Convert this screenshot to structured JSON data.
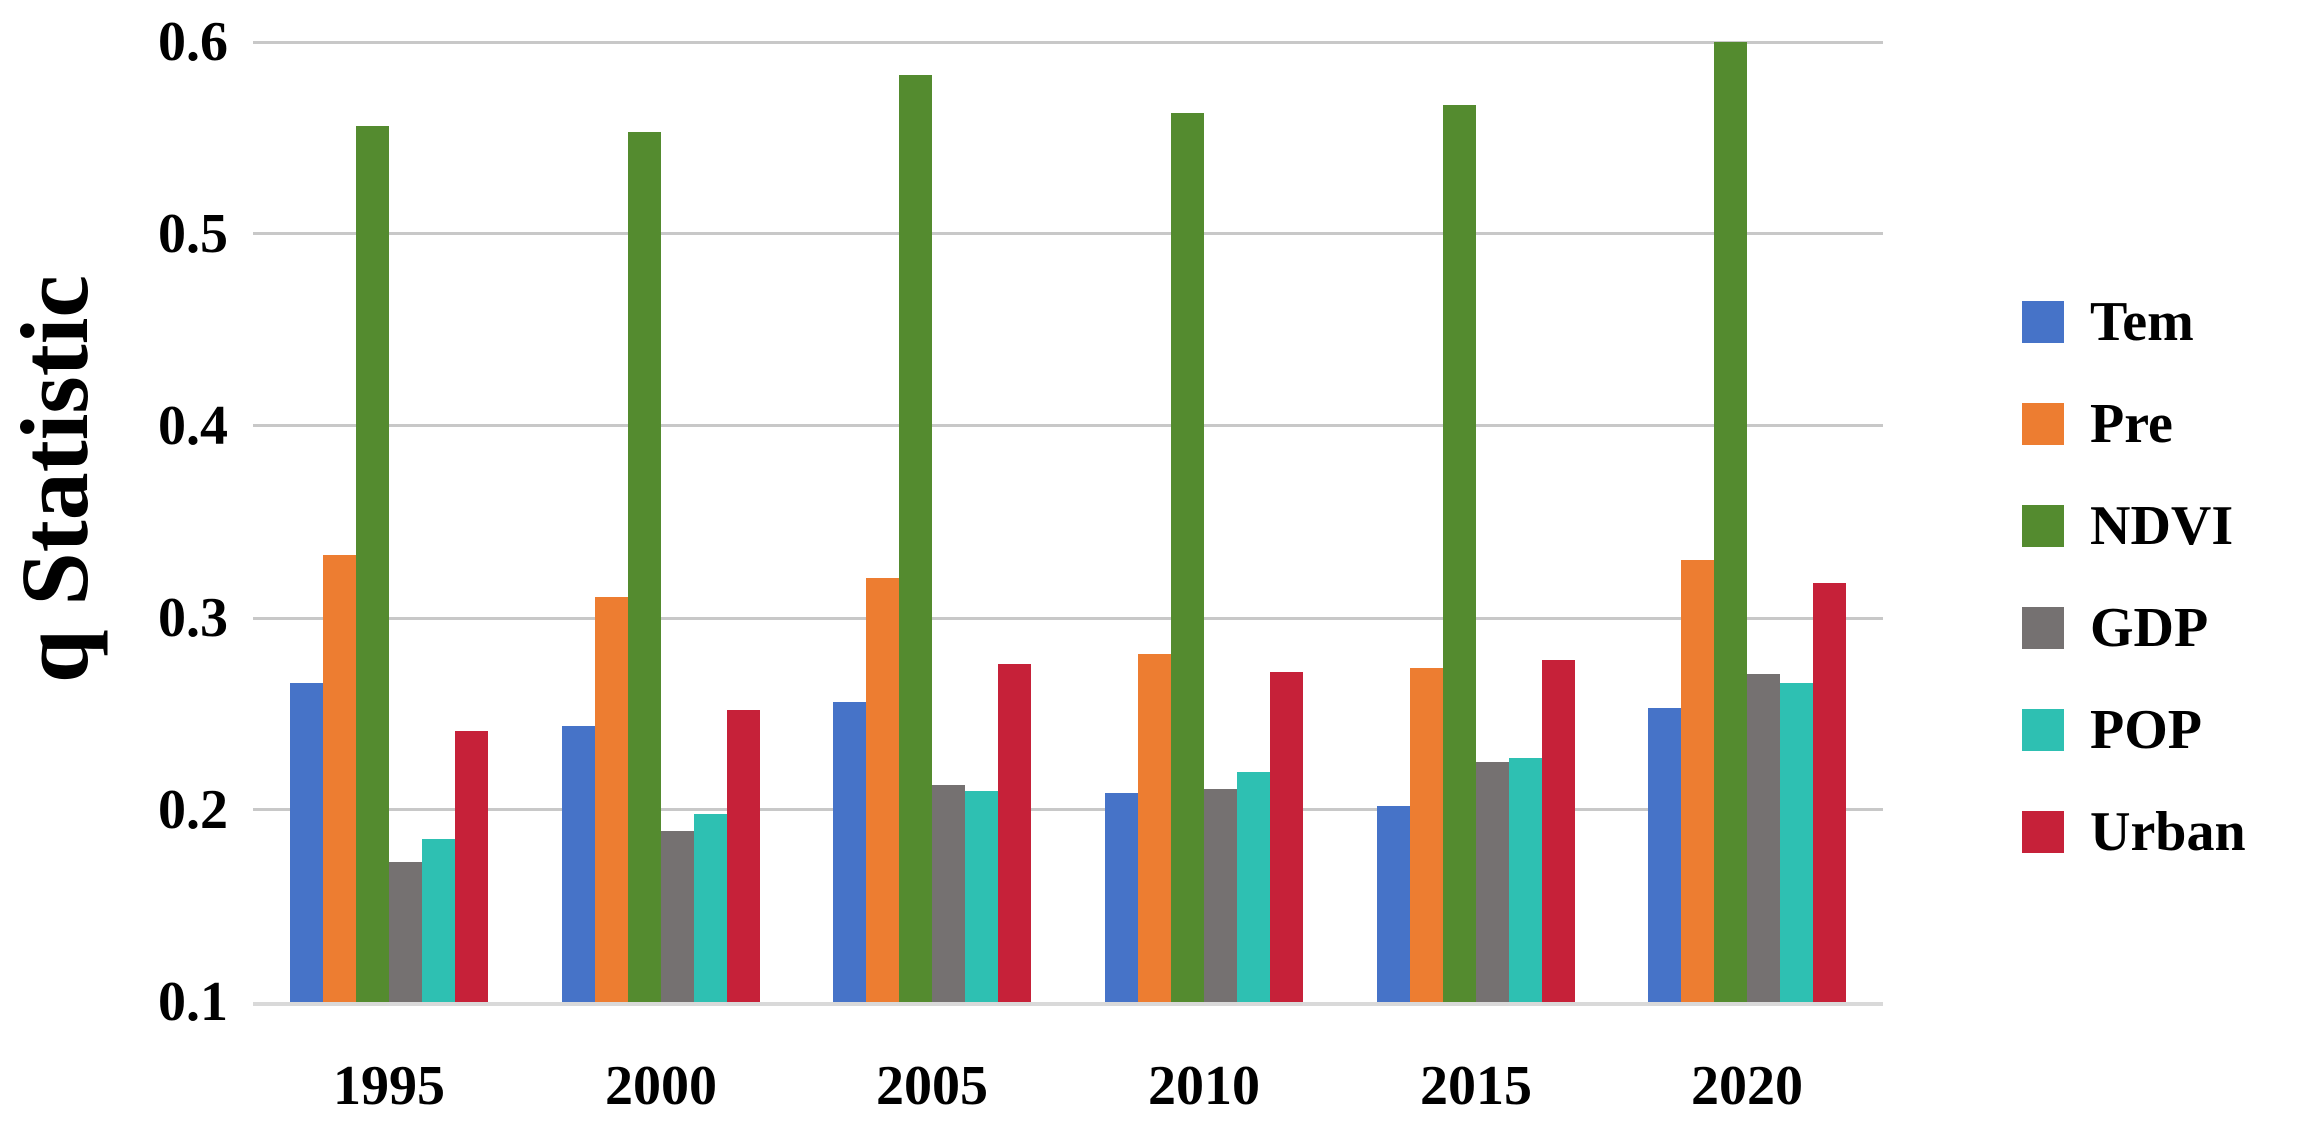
{
  "chart_data": {
    "type": "bar",
    "title": "",
    "ylabel": "q Statistic",
    "xlabel": "",
    "categories": [
      "1995",
      "2000",
      "2005",
      "2010",
      "2015",
      "2020"
    ],
    "series": [
      {
        "name": "Tem",
        "color": "#4673c8",
        "values": [
          0.266,
          0.244,
          0.256,
          0.209,
          0.202,
          0.253
        ]
      },
      {
        "name": "Pre",
        "color": "#ed7d31",
        "values": [
          0.333,
          0.311,
          0.321,
          0.281,
          0.274,
          0.33
        ]
      },
      {
        "name": "NDVI",
        "color": "#548b2f",
        "values": [
          0.556,
          0.553,
          0.583,
          0.563,
          0.567,
          0.6
        ]
      },
      {
        "name": "GDP",
        "color": "#757171",
        "values": [
          0.173,
          0.189,
          0.213,
          0.211,
          0.225,
          0.271
        ]
      },
      {
        "name": "POP",
        "color": "#2ec0b2",
        "values": [
          0.185,
          0.198,
          0.21,
          0.22,
          0.227,
          0.266
        ]
      },
      {
        "name": "Urban",
        "color": "#c62139",
        "values": [
          0.241,
          0.252,
          0.276,
          0.272,
          0.278,
          0.318
        ]
      }
    ],
    "ylim": [
      0.1,
      0.6
    ],
    "ytick_labels": [
      "0.6",
      "0.5",
      "0.4",
      "0.3",
      "0.2",
      "0.1"
    ],
    "ytick_values": [
      0.6,
      0.5,
      0.4,
      0.3,
      0.2,
      0.1
    ],
    "grid": true,
    "legend_position": "right"
  },
  "colors": {
    "background": "#ffffff",
    "gridline": "#c8c8c8",
    "baseline": "#d9d9d9",
    "text": "#000000"
  }
}
